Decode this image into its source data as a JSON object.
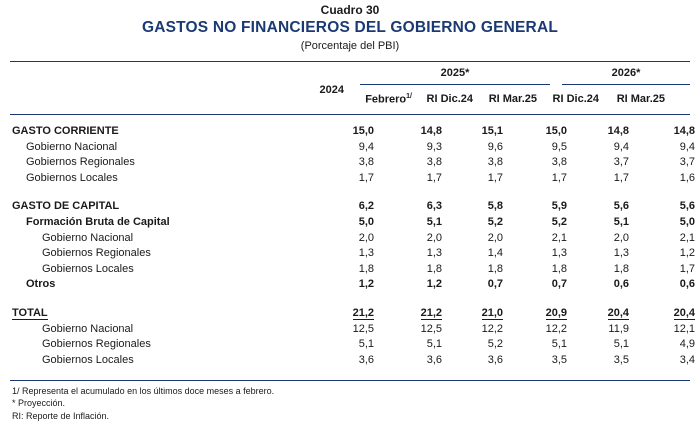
{
  "header": {
    "kicker": "Cuadro 30",
    "title": "GASTOS NO FINANCIEROS DEL GOBIERNO GENERAL",
    "subtitle": "(Porcentaje del PBI)"
  },
  "columns": {
    "year2024": "2024",
    "group2025": "2025*",
    "group2026": "2026*",
    "feb": "Febrero",
    "feb_sup": "1/",
    "ri_dic24_a": "RI Dic.24",
    "ri_mar25_a": "RI Mar.25",
    "ri_dic24_b": "RI Dic.24",
    "ri_mar25_b": "RI Mar.25"
  },
  "rows": [
    {
      "label": "GASTO CORRIENTE",
      "values": [
        "15,0",
        "14,8",
        "15,1",
        "15,0",
        "14,8",
        "14,8"
      ]
    },
    {
      "label": "Gobierno Nacional",
      "values": [
        "9,4",
        "9,3",
        "9,6",
        "9,5",
        "9,4",
        "9,4"
      ]
    },
    {
      "label": "Gobiernos Regionales",
      "values": [
        "3,8",
        "3,8",
        "3,8",
        "3,8",
        "3,7",
        "3,7"
      ]
    },
    {
      "label": "Gobiernos Locales",
      "values": [
        "1,7",
        "1,7",
        "1,7",
        "1,7",
        "1,7",
        "1,6"
      ]
    },
    {
      "label": "GASTO DE CAPITAL",
      "values": [
        "6,2",
        "6,3",
        "5,8",
        "5,9",
        "5,6",
        "5,6"
      ]
    },
    {
      "label": "Formación Bruta de Capital",
      "values": [
        "5,0",
        "5,1",
        "5,2",
        "5,2",
        "5,1",
        "5,0"
      ]
    },
    {
      "label": "Gobierno Nacional",
      "values": [
        "2,0",
        "2,0",
        "2,0",
        "2,1",
        "2,0",
        "2,1"
      ]
    },
    {
      "label": "Gobiernos Regionales",
      "values": [
        "1,3",
        "1,3",
        "1,4",
        "1,3",
        "1,3",
        "1,2"
      ]
    },
    {
      "label": "Gobiernos Locales",
      "values": [
        "1,8",
        "1,8",
        "1,8",
        "1,8",
        "1,8",
        "1,7"
      ]
    },
    {
      "label": "Otros",
      "values": [
        "1,2",
        "1,2",
        "0,7",
        "0,7",
        "0,6",
        "0,6"
      ]
    },
    {
      "label": "TOTAL",
      "values": [
        "21,2",
        "21,2",
        "21,0",
        "20,9",
        "20,4",
        "20,4"
      ]
    },
    {
      "label": "Gobierno Nacional",
      "values": [
        "12,5",
        "12,5",
        "12,2",
        "12,2",
        "11,9",
        "12,1"
      ]
    },
    {
      "label": "Gobiernos Regionales",
      "values": [
        "5,1",
        "5,1",
        "5,2",
        "5,1",
        "5,1",
        "4,9"
      ]
    },
    {
      "label": "Gobiernos Locales",
      "values": [
        "3,6",
        "3,6",
        "3,6",
        "3,5",
        "3,5",
        "3,4"
      ]
    }
  ],
  "notes": [
    "1/ Representa el acumulado en los últimos doce meses a febrero.",
    "* Proyección.",
    "RI: Reporte de Inflación."
  ]
}
